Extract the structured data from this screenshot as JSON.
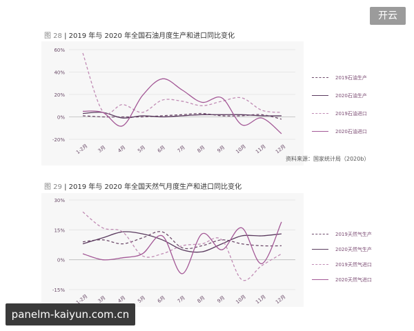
{
  "corner_badge": "开云",
  "watermark": "panelm-kaiyun.com.cn",
  "source_note": "资料来源：国家统计局（2020b）",
  "colors": {
    "production_2019": "#6d4a6a",
    "production_2020": "#5a3a5e",
    "import_2019": "#c08bb4",
    "import_2020": "#a35896"
  },
  "chart_data": [
    {
      "type": "line",
      "fig_num": "图 28",
      "title": "2019 年与 2020 年全国石油月度生产和进口同比变化",
      "categories": [
        "1-2月",
        "3月",
        "4月",
        "5月",
        "6月",
        "7月",
        "8月",
        "9月",
        "10月",
        "11月",
        "12月"
      ],
      "yticks": [
        "60%",
        "40%",
        "20%",
        "0%",
        "-20%"
      ],
      "ylim": [
        -20,
        60
      ],
      "grid": true,
      "series": [
        {
          "name": "2019石油生产",
          "style": "dashed",
          "values": [
            1,
            0,
            0,
            0,
            1,
            2,
            3,
            1,
            1,
            2,
            -2
          ]
        },
        {
          "name": "2020石油生产",
          "style": "solid",
          "values": [
            3,
            4,
            -1,
            1,
            0,
            1,
            2,
            2,
            2,
            1,
            1
          ]
        },
        {
          "name": "2019石油进口",
          "style": "dashed",
          "values": [
            57,
            5,
            11,
            4,
            15,
            14,
            10,
            14,
            17,
            6,
            4
          ]
        },
        {
          "name": "2020石油进口",
          "style": "solid",
          "values": [
            5,
            4,
            -8,
            19,
            34,
            24,
            13,
            17,
            -7,
            -1,
            -15
          ]
        }
      ]
    },
    {
      "type": "line",
      "fig_num": "图 29",
      "title": "2019 年与 2020 年全国天然气月度生产和进口同比变化",
      "categories": [
        "1-2月",
        "3月",
        "4月",
        "5月",
        "6月",
        "7月",
        "8月",
        "9月",
        "10月",
        "11月",
        "12月"
      ],
      "yticks": [
        "30%",
        "15%",
        "0%",
        "-15%"
      ],
      "ylim": [
        -15,
        30
      ],
      "grid": true,
      "series": [
        {
          "name": "2019天然气生产",
          "style": "dashed",
          "values": [
            9,
            10,
            8,
            11,
            14,
            6,
            7,
            10,
            8,
            7,
            7
          ]
        },
        {
          "name": "2020天然气生产",
          "style": "solid",
          "values": [
            8,
            11,
            14,
            13,
            10,
            5,
            4,
            8,
            12,
            12,
            13
          ]
        },
        {
          "name": "2019天然气进口",
          "style": "dashed",
          "values": [
            24,
            16,
            14,
            2,
            3,
            7,
            8,
            10,
            -10,
            -3,
            3
          ]
        },
        {
          "name": "2020天然气进口",
          "style": "solid",
          "values": [
            3,
            0,
            1,
            3,
            12,
            -7,
            13,
            5,
            16,
            -2,
            19
          ]
        }
      ]
    }
  ]
}
